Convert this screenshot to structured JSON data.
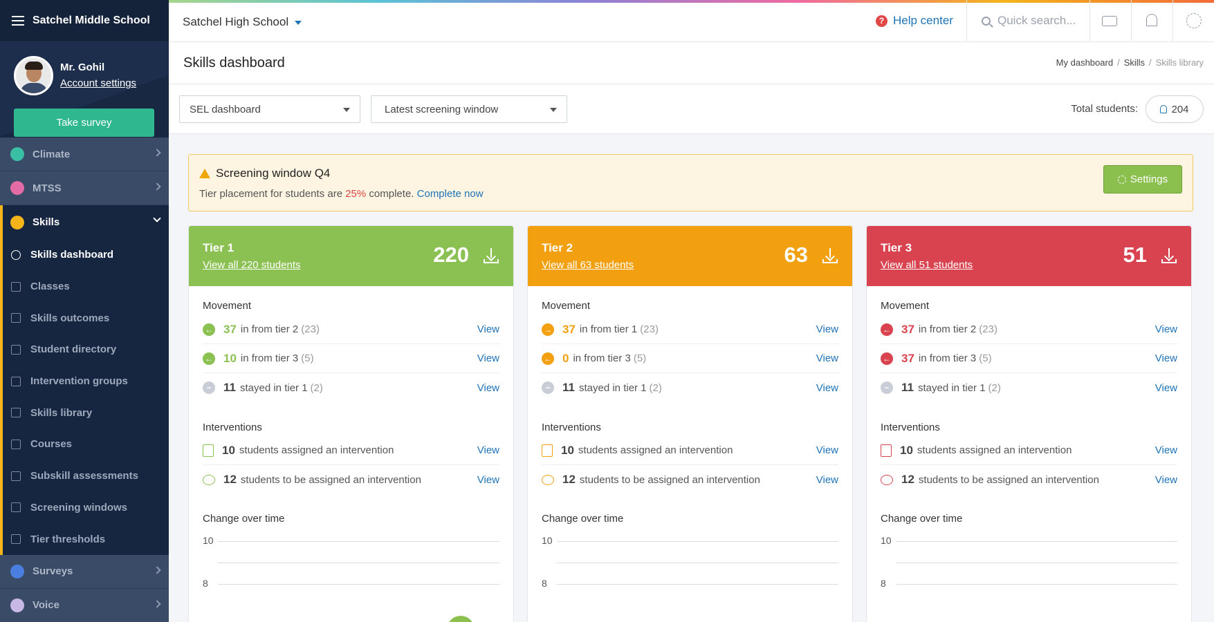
{
  "sidebar": {
    "school": "Satchel Middle School",
    "profile": {
      "name": "Mr. Gohil",
      "account_link": "Account settings"
    },
    "survey_button": "Take survey",
    "top_items": [
      {
        "label": "Climate",
        "color": "#3bbfa4"
      },
      {
        "label": "MTSS",
        "color": "#e36ba6"
      },
      {
        "label": "Skills",
        "color": "#f4b41a"
      }
    ],
    "sub_items": [
      "Skills dashboard",
      "Classes",
      "Skills outcomes",
      "Student directory",
      "Intervention groups",
      "Skills library",
      "Courses",
      "Subskill assessments",
      "Screening windows",
      "Tier thresholds"
    ],
    "bottom_items": [
      {
        "label": "Surveys",
        "color": "#4a7fe0"
      },
      {
        "label": "Voice",
        "color": "#c8b8e8"
      }
    ]
  },
  "topbar": {
    "school_selector": "Satchel High School",
    "help_label": "Help center",
    "search_placeholder": "Quick search..."
  },
  "page": {
    "title": "Skills dashboard",
    "breadcrumbs": [
      "My dashboard",
      "Skills",
      "Skills library"
    ]
  },
  "filters": {
    "dashboard_select": "SEL dashboard",
    "window_select": "Latest screening window",
    "total_label": "Total students:",
    "total_value": "204"
  },
  "banner": {
    "title": "Screening window Q4",
    "text_before": "Tier placement for students are",
    "percent": "25%",
    "text_after": "complete.",
    "link": "Complete now",
    "settings_button": "Settings"
  },
  "cards": [
    {
      "tier": "Tier 1",
      "link": "View all 220 students",
      "count": "220",
      "color": "#8bc152",
      "movement_title": "Movement",
      "movement": [
        {
          "num": "37",
          "text": "in from tier 2",
          "paren": "(23)",
          "icon": "arrow-left",
          "view": "View"
        },
        {
          "num": "10",
          "text": "in from tier 3",
          "paren": "(5)",
          "icon": "arrow-left",
          "view": "View"
        },
        {
          "num": "11",
          "text": "stayed in tier 1",
          "paren": "(2)",
          "icon": "minus",
          "view": "View"
        }
      ],
      "interventions_title": "Interventions",
      "interventions": [
        {
          "num": "10",
          "text": "students assigned an intervention",
          "view": "View"
        },
        {
          "num": "12",
          "text": "students to be assigned an intervention",
          "view": "View"
        }
      ],
      "chart_title": "Change over time",
      "y_ticks": [
        "10",
        "8"
      ]
    },
    {
      "tier": "Tier 2",
      "link": "View all 63 students",
      "count": "63",
      "color": "#f2a00f",
      "movement_title": "Movement",
      "movement": [
        {
          "num": "37",
          "text": "in from tier 1",
          "paren": "(23)",
          "icon": "arrow-right",
          "view": "View"
        },
        {
          "num": "0",
          "text": "in from tier 3",
          "paren": "(5)",
          "icon": "arrow-left",
          "view": "View"
        },
        {
          "num": "11",
          "text": "stayed in tier 1",
          "paren": "(2)",
          "icon": "minus",
          "view": "View"
        }
      ],
      "interventions_title": "Interventions",
      "interventions": [
        {
          "num": "10",
          "text": "students assigned an intervention",
          "view": "View"
        },
        {
          "num": "12",
          "text": "students to be assigned an intervention",
          "view": "View"
        }
      ],
      "chart_title": "Change over time",
      "y_ticks": [
        "10",
        "8"
      ]
    },
    {
      "tier": "Tier 3",
      "link": "View all 51 students",
      "count": "51",
      "color": "#d9434f",
      "movement_title": "Movement",
      "movement": [
        {
          "num": "37",
          "text": "in from tier 2",
          "paren": "(23)",
          "icon": "arrow-left",
          "view": "View"
        },
        {
          "num": "37",
          "text": "in from tier 3",
          "paren": "(5)",
          "icon": "arrow-left",
          "view": "View"
        },
        {
          "num": "11",
          "text": "stayed in tier 1",
          "paren": "(2)",
          "icon": "minus",
          "view": "View"
        }
      ],
      "interventions_title": "Interventions",
      "interventions": [
        {
          "num": "10",
          "text": "students assigned an intervention",
          "view": "View"
        },
        {
          "num": "12",
          "text": "students to be assigned an intervention",
          "view": "View"
        }
      ],
      "chart_title": "Change over time",
      "y_ticks": [
        "10",
        "8"
      ]
    }
  ]
}
